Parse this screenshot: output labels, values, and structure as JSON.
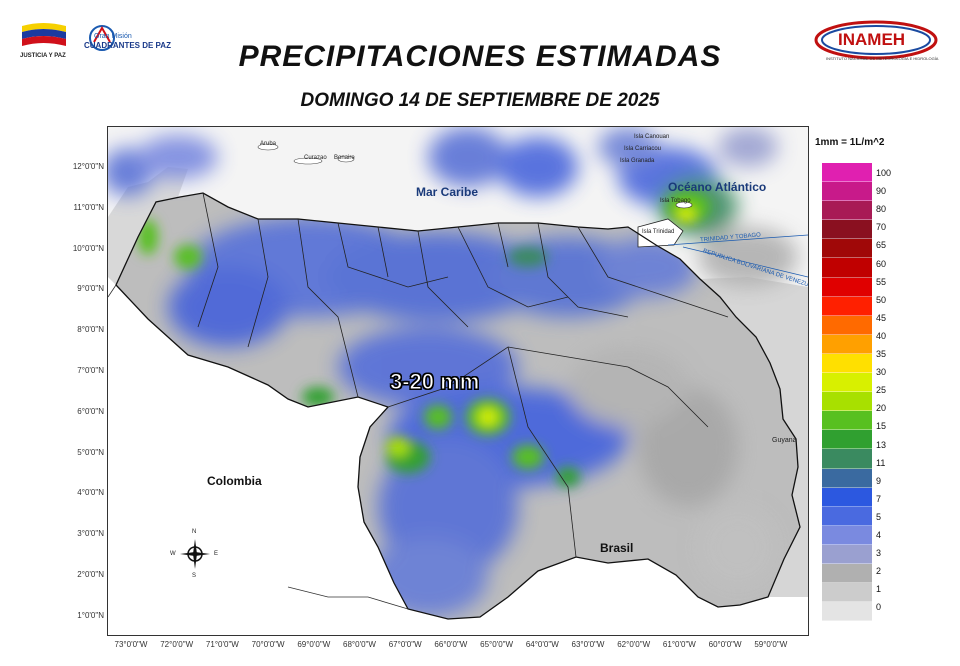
{
  "header": {
    "title": "PRECIPITACIONES ESTIMADAS",
    "subtitle": "DOMINGO 14 DE SEPTIEMBRE DE 2025",
    "logo_left_caption": "JUSTICIA Y PAZ",
    "logo_mission_line1": "Gran Misión",
    "logo_mission_line2": "CUADRANTES DE PAZ",
    "logo_right_name": "INAMEH",
    "logo_right_caption": "INSTITUTO NACIONAL DE METEOROLOGÍA E HIDROLOGÍA"
  },
  "map": {
    "lat_labels": [
      "12°0'0\"N",
      "11°0'0\"N",
      "10°0'0\"N",
      "9°0'0\"N",
      "8°0'0\"N",
      "7°0'0\"N",
      "6°0'0\"N",
      "5°0'0\"N",
      "4°0'0\"N",
      "3°0'0\"N",
      "2°0'0\"N",
      "1°0'0\"N"
    ],
    "lon_labels": [
      "73°0'0\"W",
      "72°0'0\"W",
      "71°0'0\"W",
      "70°0'0\"W",
      "69°0'0\"W",
      "68°0'0\"W",
      "67°0'0\"W",
      "66°0'0\"W",
      "65°0'0\"W",
      "64°0'0\"W",
      "63°0'0\"W",
      "62°0'0\"W",
      "61°0'0\"W",
      "60°0'0\"W",
      "59°0'0\"W"
    ],
    "places": {
      "mar_caribe": "Mar Caribe",
      "oceano": "Océano Atlántico",
      "colombia": "Colombia",
      "brasil": "Brasil",
      "guyana": "Guyana",
      "aruba": "Aruba",
      "curazao": "Curazao",
      "bonaire": "Bonaire",
      "canouan": "Isla Canouan",
      "carriacou": "Isla Carriacou",
      "granada": "Isla Granada",
      "tobago": "Isla Tobago",
      "trinidad": "Isla Trinidad",
      "tt_line": "TRINIDAD Y TOBAGO",
      "ven_line": "REPUBLICA BOLIVARIANA DE VENEZUELA"
    },
    "range_label": "3-20 mm",
    "compass": {
      "n": "N",
      "s": "S",
      "e": "E",
      "w": "W"
    }
  },
  "legend": {
    "title": "1mm = 1L/m^2",
    "entries": [
      {
        "value": "100",
        "color": "#e020b0"
      },
      {
        "value": "90",
        "color": "#c81a8a"
      },
      {
        "value": "80",
        "color": "#a81a55"
      },
      {
        "value": "70",
        "color": "#8a1020"
      },
      {
        "value": "65",
        "color": "#a00808"
      },
      {
        "value": "60",
        "color": "#c00000"
      },
      {
        "value": "55",
        "color": "#e00000"
      },
      {
        "value": "50",
        "color": "#ff2000"
      },
      {
        "value": "45",
        "color": "#ff6a00"
      },
      {
        "value": "40",
        "color": "#ffa000"
      },
      {
        "value": "35",
        "color": "#ffe000"
      },
      {
        "value": "30",
        "color": "#d8f000"
      },
      {
        "value": "25",
        "color": "#a8e000"
      },
      {
        "value": "20",
        "color": "#58c020"
      },
      {
        "value": "15",
        "color": "#30a030"
      },
      {
        "value": "13",
        "color": "#3a8a60"
      },
      {
        "value": "11",
        "color": "#3a6aa0"
      },
      {
        "value": "9",
        "color": "#2c58e0"
      },
      {
        "value": "7",
        "color": "#4a6ae0"
      },
      {
        "value": "5",
        "color": "#7a8ae0"
      },
      {
        "value": "4",
        "color": "#9aa0d0"
      },
      {
        "value": "3",
        "color": "#b0b0b0"
      },
      {
        "value": "2",
        "color": "#cccccc"
      },
      {
        "value": "1",
        "color": "#e4e4e4"
      },
      {
        "value": "0",
        "color": "#ffffff"
      }
    ]
  }
}
